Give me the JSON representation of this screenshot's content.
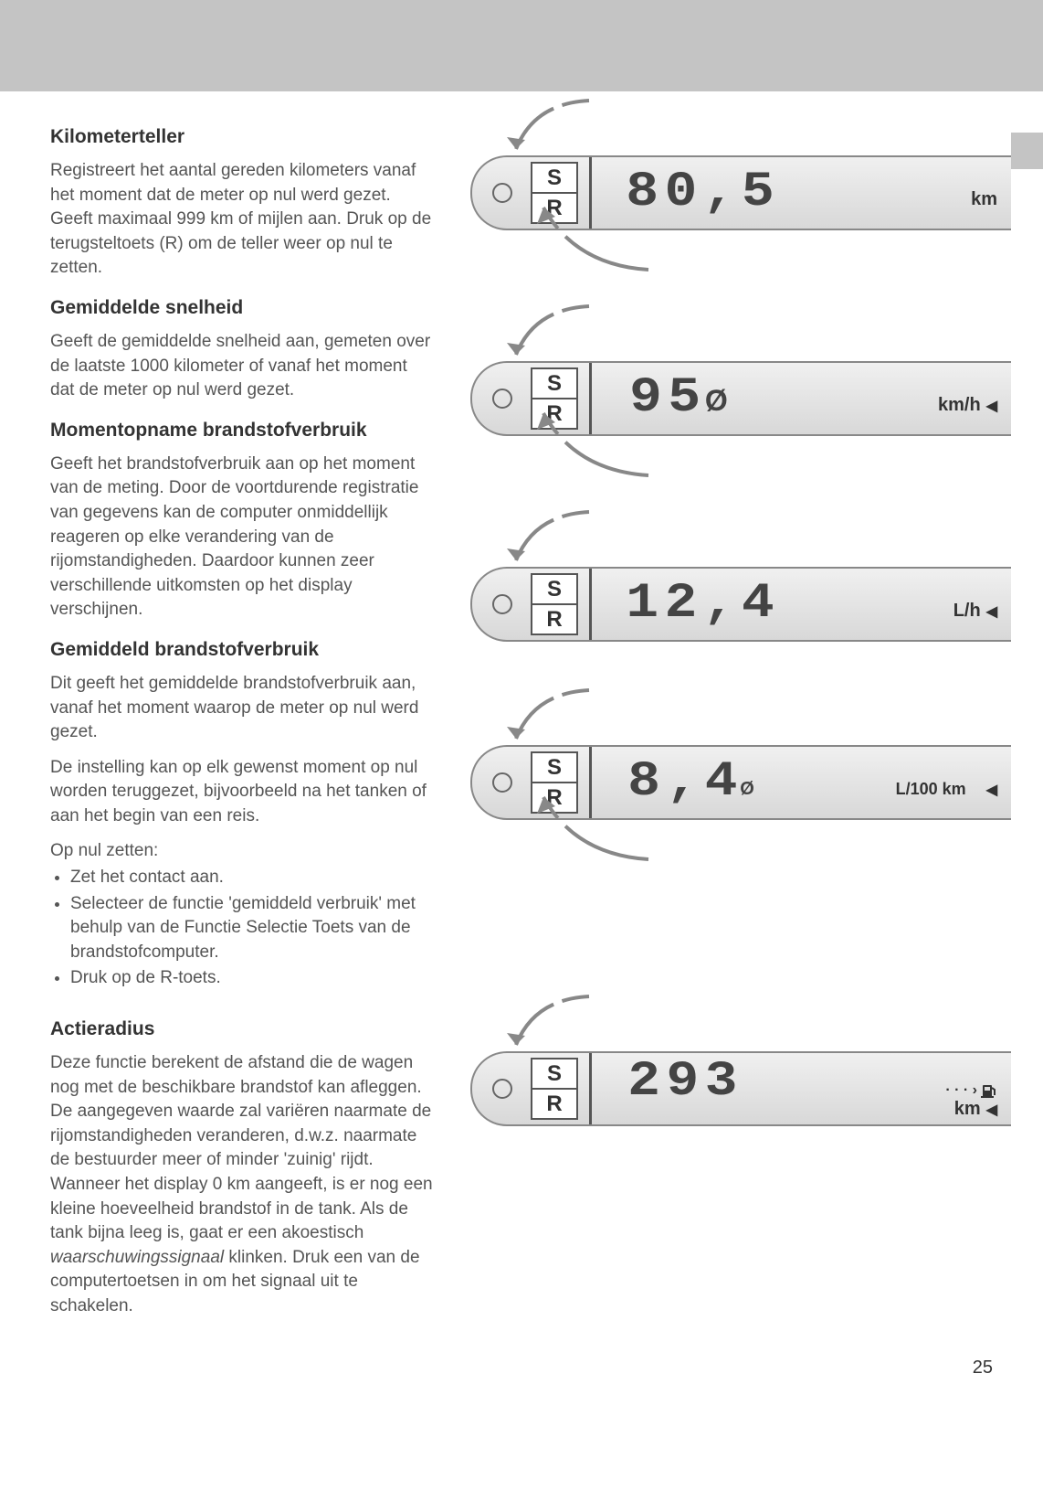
{
  "page_number": "25",
  "sections": [
    {
      "title": "Kilometerteller",
      "paragraphs": [
        "Registreert het aantal gereden kilometers vanaf het moment dat de meter op nul werd gezet. Geeft maximaal 999 km of mijlen aan. Druk op de terugsteltoets (R) om de teller weer op nul te zetten."
      ]
    },
    {
      "title": "Gemiddelde snelheid",
      "paragraphs": [
        "Geeft de gemiddelde snelheid aan, gemeten over de laatste 1000 kilometer of vanaf het moment dat de meter op nul werd gezet."
      ]
    },
    {
      "title": "Momentopname brandstofverbruik",
      "paragraphs": [
        "Geeft het brandstofverbruik aan op het moment van de meting. Door de voortdurende registratie van gegevens kan de computer onmiddellijk reageren op elke verandering van de rijomstandigheden. Daardoor kunnen zeer verschillende uitkomsten op het display verschijnen."
      ]
    },
    {
      "title": "Gemiddeld brandstofverbruik",
      "paragraphs": [
        "Dit geeft het gemiddelde brandstofverbruik aan, vanaf het moment waarop de meter op nul werd gezet.",
        "De instelling kan op elk gewenst moment op nul worden teruggezet, bijvoorbeeld na het tanken of aan het begin van een reis."
      ],
      "list_header": "Op nul zetten:",
      "list": [
        "Zet het contact aan.",
        "Selecteer de functie 'gemiddeld verbruik' met behulp van de Functie Selectie Toets van de brandstofcomputer.",
        "Druk op de R-toets."
      ]
    },
    {
      "title": "Actieradius",
      "paragraphs": [
        "Deze functie berekent de afstand die de wagen nog met de beschikbare brandstof kan afleggen. De aangegeven waarde zal variëren naarmate de rijomstandigheden veranderen, d.w.z. naarmate de bestuurder meer of minder 'zuinig' rijdt. Wanneer het display 0 km aangeeft, is er nog een kleine hoeveelheid brandstof in de tank. Als de tank bijna leeg is, gaat er een akoestisch waarschuwingssignaal klinken. Druk een van de computertoetsen in om het signaal uit te schakelen."
      ]
    }
  ],
  "gauges": [
    {
      "s": "S",
      "r": "R",
      "value": "80,5",
      "suffix": "",
      "unit": "km",
      "arrow": false,
      "dots_fuel": false
    },
    {
      "s": "S",
      "r": "R",
      "value": "95",
      "suffix": "Ø",
      "unit": "km/h",
      "arrow": true,
      "dots_fuel": false
    },
    {
      "s": "S",
      "r": "R",
      "value": "12,4",
      "suffix": "",
      "unit": "L/h",
      "arrow": true,
      "dots_fuel": false
    },
    {
      "s": "S",
      "r": "R",
      "value": "8,4",
      "suffix": "Ø",
      "unit": "L/100 km",
      "arrow": true,
      "dots_fuel": false
    },
    {
      "s": "S",
      "r": "R",
      "value": "293",
      "suffix": "",
      "unit": "km",
      "arrow": true,
      "dots_fuel": true
    }
  ],
  "italic_word": "waarschuwingssignaal"
}
